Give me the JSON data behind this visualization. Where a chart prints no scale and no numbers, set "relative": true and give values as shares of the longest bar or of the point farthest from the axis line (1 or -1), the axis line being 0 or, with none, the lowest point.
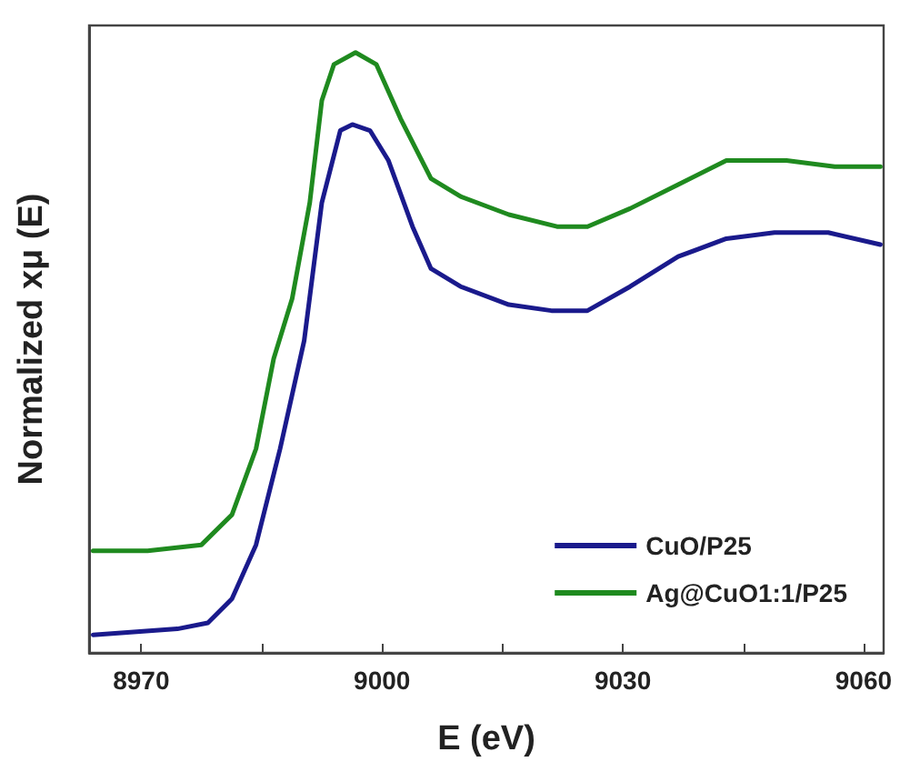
{
  "chart_data": {
    "type": "line",
    "xlabel": "E (eV)",
    "ylabel": "Normalized xμ (E)",
    "relative": true,
    "xlim": [
      8963.5,
      9062.5
    ],
    "xticks": [
      8970,
      {
        "value": 8985,
        "label": null
      },
      9000,
      {
        "value": 9015,
        "label": null
      },
      9030,
      {
        "value": 9045,
        "label": null
      },
      9060
    ],
    "grid": false,
    "legend": "bottom right",
    "marker": "none",
    "line_style": "solid",
    "tick_labels": "x",
    "series": [
      {
        "name": "CuO/P25",
        "color": "#1a1a8c",
        "x": [
          8964,
          8974.5,
          8978.3,
          8981.3,
          8984.3,
          8987.3,
          8990.3,
          8992.5,
          8994.8,
          8996.3,
          8998.5,
          9000.8,
          9003.8,
          9006.1,
          9009.8,
          9015.8,
          9021.1,
          9025.6,
          9030.9,
          9036.9,
          9042.9,
          9048.9,
          9055.6,
          9062.1
        ],
        "values": [
          0.03,
          0.04,
          0.05,
          0.09,
          0.18,
          0.34,
          0.52,
          0.75,
          0.87,
          0.88,
          0.87,
          0.82,
          0.71,
          0.64,
          0.61,
          0.58,
          0.57,
          0.57,
          0.61,
          0.66,
          0.69,
          0.7,
          0.7,
          0.68
        ]
      },
      {
        "name": "Ag@CuO1:1/P25",
        "color": "#1f8a1f",
        "x": [
          8964,
          8970.8,
          8977.5,
          8981.3,
          8984.3,
          8986.5,
          8988.8,
          8991,
          8992.5,
          8994,
          8996.7,
          8999.3,
          9002.3,
          9006.1,
          9009.8,
          9015.8,
          9021.8,
          9025.6,
          9030.9,
          9036.9,
          9042.9,
          9050.4,
          9056.4,
          9062.1
        ],
        "values": [
          0.17,
          0.17,
          0.18,
          0.23,
          0.34,
          0.49,
          0.59,
          0.75,
          0.92,
          0.98,
          1.0,
          0.98,
          0.89,
          0.79,
          0.76,
          0.73,
          0.71,
          0.71,
          0.74,
          0.78,
          0.82,
          0.82,
          0.81,
          0.81
        ]
      }
    ]
  }
}
